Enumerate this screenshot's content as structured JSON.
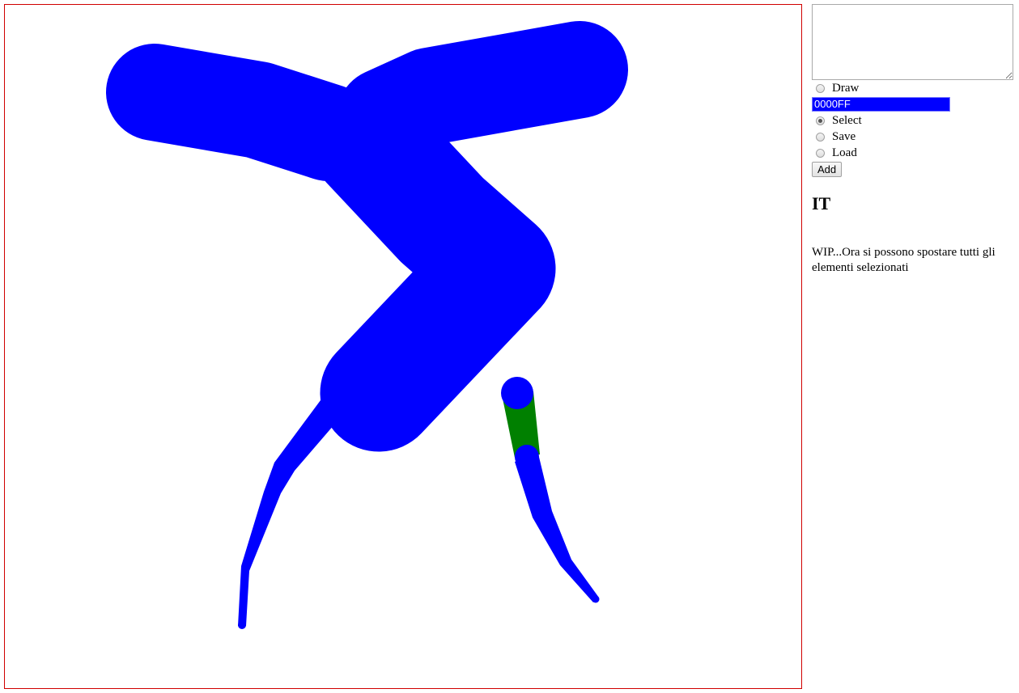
{
  "canvas": {
    "border_color": "#d00000",
    "stroke_color": "#0000ff",
    "selected_color": "#008000"
  },
  "sidebar": {
    "notes_value": "",
    "modes": [
      {
        "label": "Draw",
        "checked": false
      },
      {
        "label": "Select",
        "checked": true
      },
      {
        "label": "Save",
        "checked": false
      },
      {
        "label": "Load",
        "checked": false
      }
    ],
    "color_value": "0000FF",
    "add_label": "Add",
    "language": "IT",
    "description": "WIP...Ora si possono spostare tutti gli elementi selezionati"
  }
}
